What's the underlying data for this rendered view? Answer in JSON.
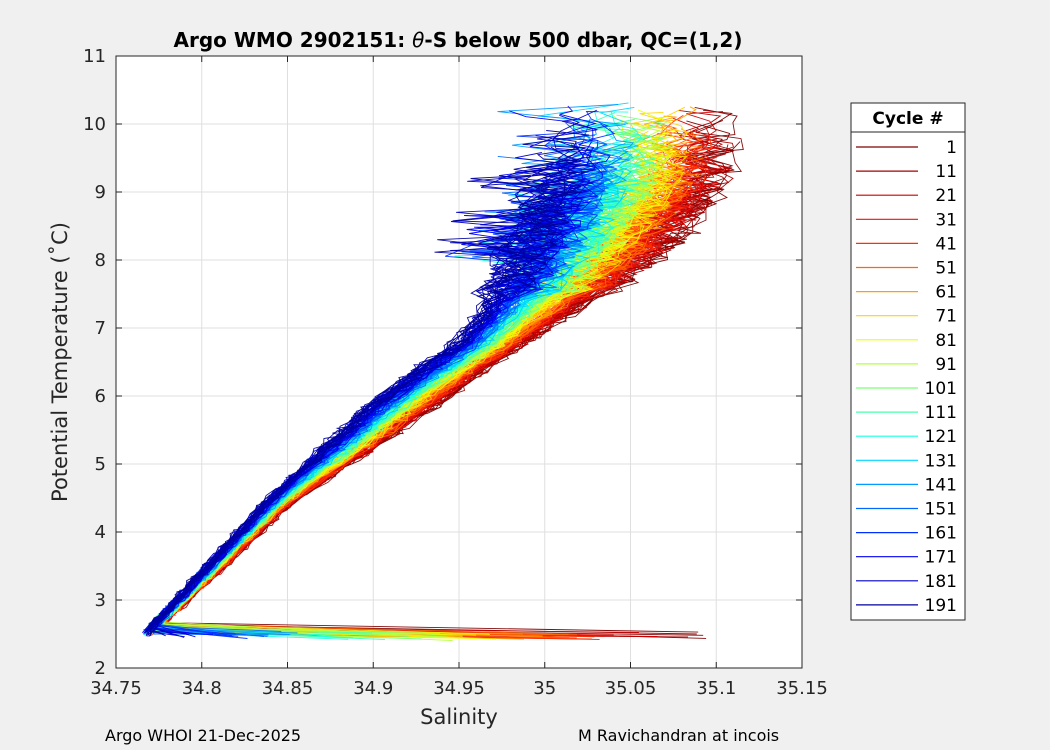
{
  "chart_data": {
    "type": "line",
    "title_prefix": "Argo WMO 2902151: ",
    "title_theta": "θ",
    "title_suffix": "-S below 500 dbar,  QC=(1,2)",
    "xlabel": "Salinity",
    "ylabel": "Potential Temperature (˚C)",
    "xlim": [
      34.75,
      35.15
    ],
    "ylim": [
      2,
      11
    ],
    "xticks": [
      "34.75",
      "34.8",
      "34.85",
      "34.9",
      "34.95",
      "35",
      "35.05",
      "35.1",
      "35.15"
    ],
    "yticks": [
      "2",
      "3",
      "4",
      "5",
      "6",
      "7",
      "8",
      "9",
      "10",
      "11"
    ],
    "grid": true,
    "legend": {
      "title": "Cycle #",
      "position": "right",
      "entries": [
        {
          "label": "1",
          "color": "#7f0000"
        },
        {
          "label": "11",
          "color": "#a50000"
        },
        {
          "label": "21",
          "color": "#cc0000"
        },
        {
          "label": "31",
          "color": "#e8140b"
        },
        {
          "label": "41",
          "color": "#ff3000"
        },
        {
          "label": "51",
          "color": "#ff6a00"
        },
        {
          "label": "61",
          "color": "#ffa000"
        },
        {
          "label": "71",
          "color": "#ffd400"
        },
        {
          "label": "81",
          "color": "#eaff0c"
        },
        {
          "label": "91",
          "color": "#b5ff42"
        },
        {
          "label": "101",
          "color": "#7dff7a"
        },
        {
          "label": "111",
          "color": "#4affad"
        },
        {
          "label": "121",
          "color": "#19ffe0"
        },
        {
          "label": "131",
          "color": "#00d4ff"
        },
        {
          "label": "141",
          "color": "#009cff"
        },
        {
          "label": "151",
          "color": "#0068ff"
        },
        {
          "label": "161",
          "color": "#0030ff"
        },
        {
          "label": "171",
          "color": "#0000f0"
        },
        {
          "label": "181",
          "color": "#0000c8"
        },
        {
          "label": "191",
          "color": "#00009c"
        }
      ]
    },
    "series_note": "theta-S profiles, one per cycle, colored by cycle number",
    "envelope": {
      "red_early_cycles": [
        [
          34.77,
          2.5
        ],
        [
          34.85,
          4.4
        ],
        [
          34.92,
          5.6
        ],
        [
          34.97,
          6.5
        ],
        [
          35.02,
          7.3
        ],
        [
          35.07,
          8.3
        ],
        [
          35.1,
          9.2
        ]
      ],
      "blue_late_cycles": [
        [
          34.765,
          2.45
        ],
        [
          34.84,
          4.5
        ],
        [
          34.9,
          5.9
        ],
        [
          34.95,
          6.8
        ],
        [
          34.98,
          7.8
        ],
        [
          35.0,
          8.8
        ],
        [
          35.01,
          9.6
        ]
      ]
    }
  },
  "footer": {
    "left": "Argo WHOI 21-Dec-2025",
    "right": "M Ravichandran at incois"
  }
}
